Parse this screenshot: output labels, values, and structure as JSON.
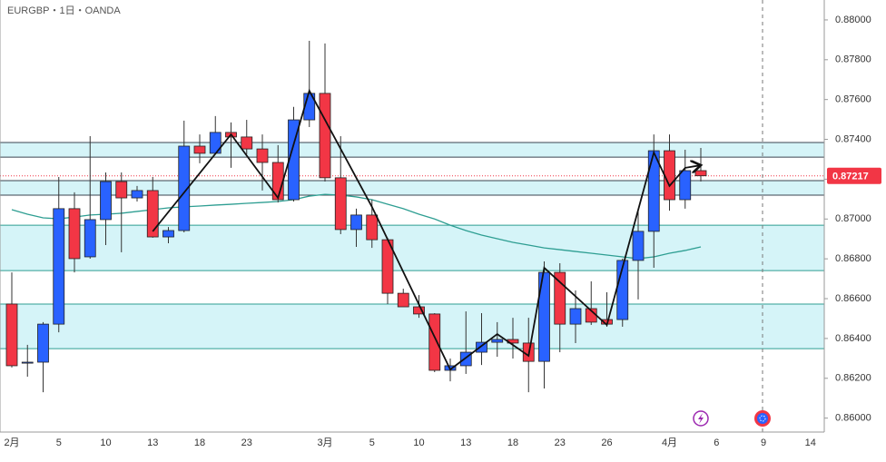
{
  "chart_data": {
    "type": "candlestick",
    "title": "EURGBP・1日・OANDA",
    "categories": [
      "2月",
      null,
      null,
      "5",
      null,
      null,
      "10",
      null,
      null,
      "13",
      null,
      null,
      "18",
      null,
      null,
      "23",
      null,
      null,
      null,
      null,
      "3月",
      null,
      null,
      "5",
      null,
      null,
      "10",
      null,
      null,
      "13",
      null,
      null,
      "18",
      null,
      null,
      "23",
      null,
      null,
      "26",
      null,
      null,
      null,
      "4月",
      null,
      null,
      "6",
      null,
      null,
      "9",
      null,
      null,
      "14"
    ],
    "open": [
      0.86573,
      0.86276,
      0.86281,
      0.86472,
      0.87052,
      0.8681,
      0.86997,
      0.87188,
      0.87106,
      0.87143,
      0.8691,
      0.86942,
      0.87366,
      0.8733,
      0.87435,
      0.87412,
      0.87352,
      0.87284,
      0.87097,
      0.87498,
      0.87631,
      0.87207,
      0.86947,
      0.8702,
      0.86896,
      0.86627,
      0.86559,
      0.86523,
      0.8624,
      0.86263,
      0.86331,
      0.86381,
      0.86395,
      0.86377,
      0.86285,
      0.86732,
      0.86472,
      0.8655,
      0.86495,
      0.86495,
      0.86792,
      0.86938,
      0.87343,
      0.87097,
      0.87243,
      null,
      null,
      null,
      null,
      null,
      null,
      null
    ],
    "high": [
      0.86732,
      0.86368,
      0.86482,
      0.87211,
      0.87134,
      0.87416,
      0.87234,
      0.87234,
      0.87166,
      0.87211,
      0.8696,
      0.87494,
      0.87425,
      0.87517,
      0.87485,
      0.87498,
      0.87425,
      0.87371,
      0.87563,
      0.87895,
      0.87882,
      0.87416,
      0.87052,
      0.87097,
      0.86906,
      0.8665,
      0.86618,
      0.86527,
      0.86299,
      0.86536,
      0.86527,
      0.86482,
      0.86504,
      0.86504,
      0.86787,
      0.86778,
      0.86641,
      0.86687,
      0.86632,
      0.86801,
      0.87042,
      0.87425,
      0.87425,
      0.87348,
      0.87357,
      null,
      null,
      null,
      null,
      null,
      null,
      null
    ],
    "low": [
      0.86254,
      0.86208,
      0.8613,
      0.86431,
      0.86732,
      0.86801,
      0.86869,
      0.86833,
      0.87088,
      0.86906,
      0.86878,
      0.86933,
      0.8728,
      0.87325,
      0.87257,
      0.87325,
      0.87143,
      0.87083,
      0.87088,
      0.87462,
      0.87188,
      0.86924,
      0.8686,
      0.86855,
      0.86573,
      0.86559,
      0.86504,
      0.86231,
      0.86185,
      0.86222,
      0.86267,
      0.86308,
      0.86299,
      0.8613,
      0.86149,
      0.86331,
      0.86377,
      0.86468,
      0.86459,
      0.86459,
      0.86596,
      0.86755,
      0.87042,
      0.87052,
      0.87188,
      null,
      null,
      null,
      null,
      null,
      null,
      null
    ],
    "close": [
      0.86263,
      0.86281,
      0.86472,
      0.87052,
      0.86801,
      0.86997,
      0.87188,
      0.87106,
      0.87143,
      0.8691,
      0.86942,
      0.87366,
      0.8733,
      0.87435,
      0.87412,
      0.87352,
      0.87284,
      0.87097,
      0.87498,
      0.87631,
      0.87207,
      0.86947,
      0.8702,
      0.86896,
      0.86627,
      0.86559,
      0.86523,
      0.8624,
      0.86263,
      0.86331,
      0.86381,
      0.86395,
      0.86377,
      0.86285,
      0.86732,
      0.86472,
      0.8655,
      0.86482,
      0.86472,
      0.86792,
      0.86938,
      0.87343,
      0.87097,
      0.87243,
      0.87217,
      null,
      null,
      null,
      null,
      null,
      null,
      null
    ],
    "up_color": "#2962ff",
    "down_color": "#f23645",
    "moving_average": {
      "color": "#2e9e92",
      "values": [
        0.87047,
        0.87024,
        0.87006,
        0.87001,
        0.8701,
        0.8702,
        0.87024,
        0.87029,
        0.87038,
        0.87047,
        0.87056,
        0.87061,
        0.87065,
        0.8707,
        0.87074,
        0.87079,
        0.87083,
        0.87088,
        0.87097,
        0.87115,
        0.87124,
        0.8712,
        0.87111,
        0.87097,
        0.87074,
        0.87052,
        0.87024,
        0.87,
        0.86969,
        0.86942,
        0.86919,
        0.86901,
        0.86883,
        0.86869,
        0.86855,
        0.86846,
        0.86837,
        0.86828,
        0.86819,
        0.8681,
        0.86801,
        0.8681,
        0.86828,
        0.86842,
        0.8686,
        null,
        null,
        null,
        null,
        null,
        null,
        null
      ]
    },
    "zigzag": {
      "color": "#111111",
      "x": [
        9,
        14,
        17,
        19,
        23,
        28,
        31,
        33,
        34,
        38,
        41,
        42,
        43,
        44
      ],
      "values": [
        0.86938,
        0.87425,
        0.87106,
        0.87644,
        0.87061,
        0.86244,
        0.86422,
        0.86313,
        0.86755,
        0.86468,
        0.87334,
        0.87166,
        0.87257,
        0.8727
      ]
    },
    "zones": [
      {
        "top": 0.87384,
        "bottom": 0.87311
      },
      {
        "top": 0.87193,
        "bottom": 0.8712
      },
      {
        "top": 0.86969,
        "bottom": 0.86741
      },
      {
        "top": 0.86573,
        "bottom": 0.86349
      }
    ],
    "zone_color": "#d5f4f8",
    "last_price": 0.87217,
    "last_price_color": "#f23645",
    "ylim": [
      0.8593,
      0.881
    ],
    "yticks": [
      {
        "value": 0.86,
        "label": "0.86000"
      },
      {
        "value": 0.862,
        "label": "0.86200"
      },
      {
        "value": 0.864,
        "label": "0.86400"
      },
      {
        "value": 0.866,
        "label": "0.86600"
      },
      {
        "value": 0.868,
        "label": "0.86800"
      },
      {
        "value": 0.87,
        "label": "0.87000"
      },
      {
        "value": 0.872,
        "label": "0.87200"
      },
      {
        "value": 0.874,
        "label": "0.87400"
      },
      {
        "value": 0.876,
        "label": "0.87600"
      },
      {
        "value": 0.878,
        "label": "0.87800"
      },
      {
        "value": 0.88,
        "label": "0.88000"
      }
    ]
  }
}
